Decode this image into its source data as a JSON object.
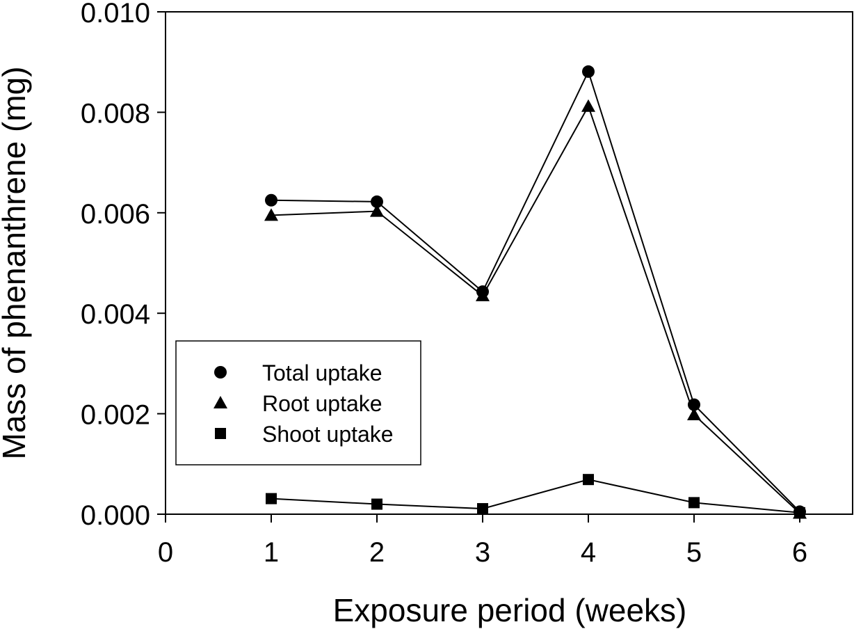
{
  "chart_data": {
    "type": "line",
    "xlabel": "Exposure period (weeks)",
    "ylabel": "Mass of phenanthrene (mg)",
    "xlim": [
      0,
      6.5
    ],
    "ylim": [
      0,
      0.01
    ],
    "x_ticks": [
      "0",
      "1",
      "2",
      "3",
      "4",
      "5",
      "6"
    ],
    "y_ticks": [
      "0.000",
      "0.002",
      "0.004",
      "0.006",
      "0.008",
      "0.010"
    ],
    "x": [
      1,
      2,
      3,
      4,
      5,
      6
    ],
    "series": [
      {
        "name": "Total uptake",
        "marker": "circle",
        "values": [
          0.00625,
          0.00622,
          0.00443,
          0.00881,
          0.00218,
          5e-05
        ]
      },
      {
        "name": "Root uptake",
        "marker": "triangle",
        "values": [
          0.00595,
          0.00603,
          0.00435,
          0.00812,
          0.00198,
          2e-05
        ]
      },
      {
        "name": "Shoot uptake",
        "marker": "square",
        "values": [
          0.00031,
          0.0002,
          0.00011,
          0.00069,
          0.00023,
          3e-05
        ]
      }
    ],
    "legend": "lower-left",
    "grid": false,
    "color": "#000000"
  }
}
